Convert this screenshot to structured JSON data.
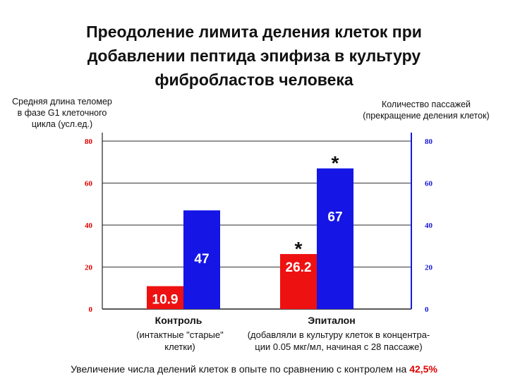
{
  "title_lines": [
    "Преодоление лимита деления клеток при",
    "добавлении пептида эпифиза в культуру",
    "фибробластов человека"
  ],
  "left_axis_title_lines": [
    "Средняя длина теломер",
    "в фазе  G1 клеточного",
    "цикла (усл.ед.)"
  ],
  "right_axis_title_lines": [
    "Количество пассажей",
    "(прекращение деления клеток)"
  ],
  "groups": [
    {
      "name": "Контроль",
      "sub_lines": [
        "(интактные \"старые\"",
        "клетки)"
      ]
    },
    {
      "name": "Эпиталон",
      "sub_lines": [
        "(добавляли в культуру клеток в концентра-",
        "ции 0.05 мкг/мл, начиная с 28 пассаже)"
      ]
    }
  ],
  "footer": {
    "text": "Увеличение числа делений клеток в опыте по сравнению с контролем на ",
    "highlight": "42,5%"
  },
  "colors": {
    "red_bar": "#ee1111",
    "blue_bar": "#1515e6",
    "left_axis": "#e00000",
    "right_axis": "#1a1ad8"
  },
  "chart_data": {
    "type": "bar",
    "categories": [
      "Контроль",
      "Эпиталон"
    ],
    "series": [
      {
        "values": [
          10.9,
          26.2
        ],
        "axis": "left",
        "color": "#ee1111",
        "labels": [
          "10.9",
          "26.2"
        ]
      },
      {
        "values": [
          47,
          67
        ],
        "axis": "right",
        "color": "#1515e6",
        "labels": [
          "47",
          "67"
        ]
      }
    ],
    "significance_markers": [
      "",
      "*"
    ],
    "ylim_left": [
      0,
      80
    ],
    "ylim_right": [
      0,
      80
    ],
    "yticks": [
      0,
      20,
      40,
      60,
      80
    ],
    "grid": true
  }
}
